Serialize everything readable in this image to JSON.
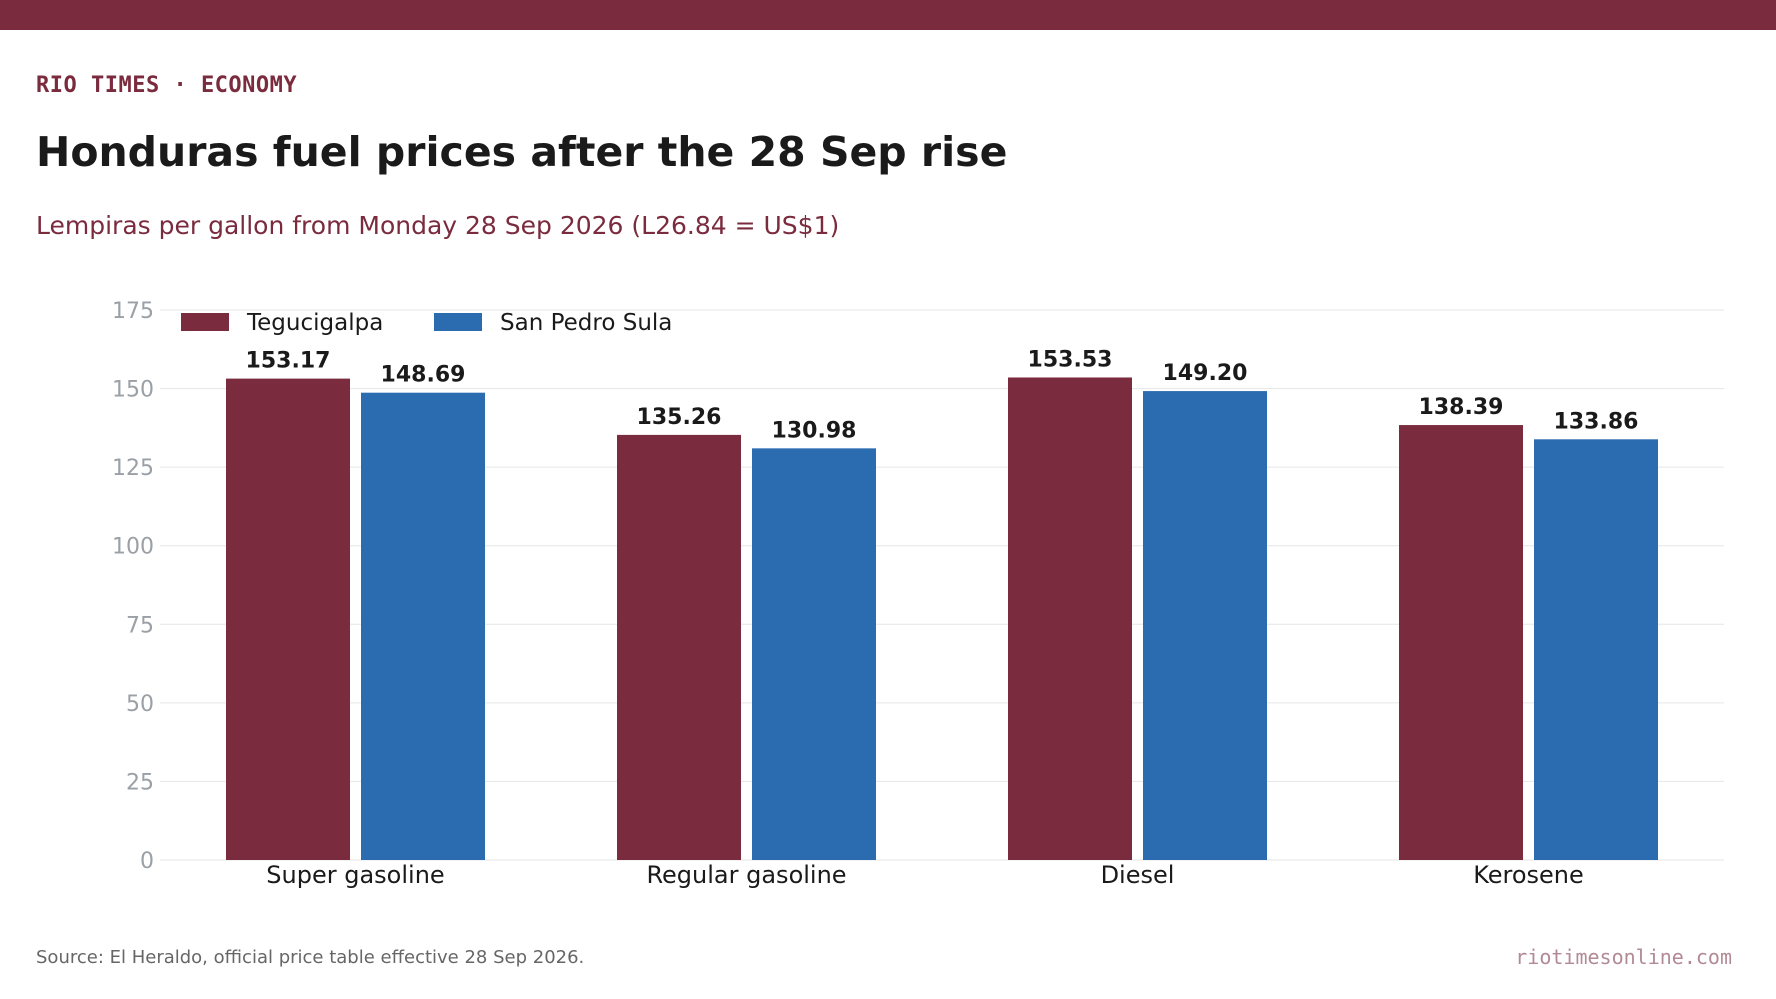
{
  "header": {
    "kicker": "RIO TIMES · ECONOMY",
    "title": "Honduras fuel prices after the 28 Sep rise",
    "subtitle": "Lempiras per gallon from Monday 28 Sep 2026 (L26.84 = US$1)"
  },
  "footer": {
    "source": "Source: El Heraldo, official price table effective 28 Sep 2026.",
    "site": "riotimesonline.com"
  },
  "colors": {
    "brand": "#7a2b3e",
    "tegucigalpa": "#7a2b3e",
    "san_pedro_sula": "#2b6cb0",
    "grid": "#e6e6e6",
    "tick": "#9aa0a6"
  },
  "chart_data": {
    "type": "bar",
    "title": "Honduras fuel prices after the 28 Sep rise",
    "subtitle": "Lempiras per gallon from Monday 28 Sep 2026 (L26.84 = US$1)",
    "xlabel": "",
    "ylabel": "",
    "categories": [
      "Super gasoline",
      "Regular gasoline",
      "Diesel",
      "Kerosene"
    ],
    "series": [
      {
        "name": "Tegucigalpa",
        "values": [
          153.17,
          135.26,
          153.53,
          138.39
        ],
        "labels": [
          "153.17",
          "135.26",
          "153.53",
          "138.39"
        ]
      },
      {
        "name": "San Pedro Sula",
        "values": [
          148.69,
          130.98,
          149.2,
          133.86
        ],
        "labels": [
          "148.69",
          "130.98",
          "149.20",
          "133.86"
        ]
      }
    ],
    "ylim": [
      0,
      175
    ],
    "yticks": [
      0,
      25,
      50,
      75,
      100,
      125,
      150,
      175
    ],
    "ytick_labels": [
      "0",
      "25",
      "50",
      "75",
      "100",
      "125",
      "150",
      "175"
    ],
    "grid": true,
    "legend": "top-left"
  }
}
